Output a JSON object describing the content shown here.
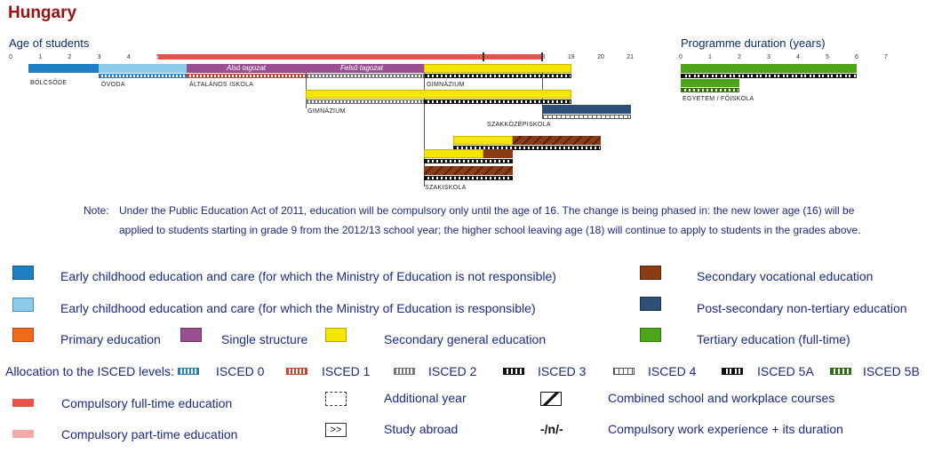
{
  "country": "Hungary",
  "age_axis": {
    "title": "Age of students",
    "ticks": [
      "0",
      "1",
      "2",
      "3",
      "4",
      "5",
      "6",
      "7",
      "8",
      "9",
      "10",
      "11",
      "12",
      "13",
      "14",
      "15",
      "16",
      "17",
      "18",
      "19",
      "20",
      "21"
    ]
  },
  "duration_axis": {
    "title": "Programme duration (years)",
    "ticks": [
      "0",
      "1",
      "2",
      "3",
      "4",
      "5",
      "6",
      "7"
    ]
  },
  "programmes": {
    "bolcsode": "BÖLCSŐDE",
    "ovoda": "ÓVODA",
    "altalanos": "ÁLTALÁNOS ISKOLA",
    "also": "Alsó tagozat",
    "felso": "Felső tagozat",
    "gimnazium_main": "GIMNÁZIUM",
    "gimnazium_8yr": "GIMNÁZIUM",
    "szakkozep": "SZAKKÖZÉPISKOLA",
    "szakiskola": "SZAKISKOLA",
    "egyetem": "EGYETEM / FŐISKOLA"
  },
  "note": {
    "label": "Note:",
    "line1": "Under the Public Education Act of 2011, education will be compulsory only until the age of 16. The change is being phased in: the new lower age (16) will be",
    "line2": "applied to students starting in grade 9 from the 2012/13 school year; the higher school leaving age (18) will continue to apply to students in the grades above."
  },
  "legend": {
    "ecec_not": "Early childhood education and care (for which the Ministry of Education is not responsible)",
    "ecec_resp": "Early childhood education and care (for which the Ministry of Education is responsible)",
    "primary": "Primary education",
    "single": "Single structure",
    "sec_general": "Secondary general education",
    "sec_voc": "Secondary vocational education",
    "post_sec": "Post-secondary non-tertiary education",
    "tertiary": "Tertiary education (full-time)",
    "isced_title": "Allocation to the ISCED levels:",
    "isced0": "ISCED 0",
    "isced1": "ISCED 1",
    "isced2": "ISCED 2",
    "isced3": "ISCED 3",
    "isced4": "ISCED 4",
    "isced5a": "ISCED 5A",
    "isced5b": "ISCED 5B",
    "comp_full": "Compulsory full-time education",
    "comp_part": "Compulsory part-time education",
    "add_year": "Additional year",
    "study_abroad": "Study abroad",
    "combined": "Combined school and workplace courses",
    "work_exp": "Compulsory work experience + its duration",
    "study_abroad_symbol": ">>",
    "work_exp_symbol": "-/n/-"
  },
  "colors": {
    "ecec_not": "#1f7fc4",
    "ecec_resp": "#8ecbe8",
    "primary": "#f06a1a",
    "single": "#9a4f93",
    "sec_general": "#f5e600",
    "sec_voc": "#8a3d12",
    "post_sec": "#2d4e75",
    "tertiary": "#4ea51a",
    "compulsory_full": "#e8524a",
    "compulsory_part": "#f2aaa6"
  }
}
